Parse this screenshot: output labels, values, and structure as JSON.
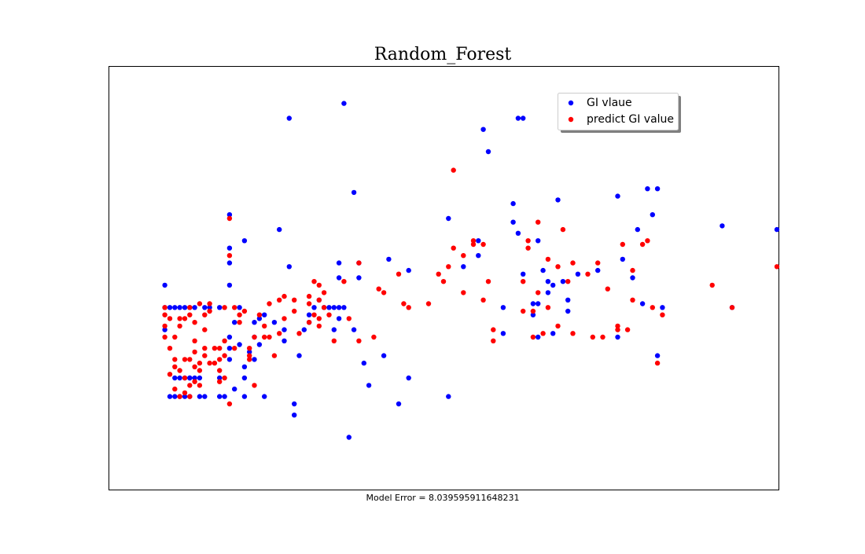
{
  "chart_data": {
    "type": "scatter",
    "title": "Random_Forest",
    "xlabel": "Model Error = 8.039595911648231",
    "ylabel": "",
    "grid": false,
    "legend_position": "upper right",
    "xlim": [
      0,
      122
    ],
    "ylim": [
      0,
      104
    ],
    "series": [
      {
        "name": "GI vlaue",
        "color": "#0000ff",
        "points": [
          [
            5,
            50
          ],
          [
            5,
            44
          ],
          [
            5,
            38
          ],
          [
            6,
            44
          ],
          [
            7,
            44
          ],
          [
            8,
            44
          ],
          [
            9,
            44
          ],
          [
            10,
            44
          ],
          [
            11,
            44
          ],
          [
            10,
            25
          ],
          [
            10,
            20
          ],
          [
            9,
            20
          ],
          [
            8,
            20
          ],
          [
            6,
            20
          ],
          [
            7,
            20
          ],
          [
            7,
            25
          ],
          [
            8,
            25
          ],
          [
            9,
            25
          ],
          [
            10,
            25
          ],
          [
            11,
            25
          ],
          [
            12,
            25
          ],
          [
            12,
            20
          ],
          [
            13,
            20
          ],
          [
            13,
            44
          ],
          [
            14,
            44
          ],
          [
            16,
            44
          ],
          [
            16,
            25
          ],
          [
            16,
            20
          ],
          [
            17,
            20
          ],
          [
            18,
            50
          ],
          [
            18,
            56
          ],
          [
            18,
            69
          ],
          [
            18,
            60
          ],
          [
            18,
            33
          ],
          [
            18,
            30
          ],
          [
            18,
            36
          ],
          [
            19,
            22
          ],
          [
            19,
            40
          ],
          [
            20,
            44
          ],
          [
            20,
            34
          ],
          [
            21,
            20
          ],
          [
            21,
            62
          ],
          [
            21,
            28
          ],
          [
            21,
            25
          ],
          [
            23,
            40
          ],
          [
            23,
            30
          ],
          [
            22,
            32
          ],
          [
            23,
            36
          ],
          [
            24,
            34
          ],
          [
            25,
            20
          ],
          [
            24,
            41
          ],
          [
            25,
            42
          ],
          [
            27,
            40
          ],
          [
            28,
            65
          ],
          [
            29,
            38
          ],
          [
            29,
            35
          ],
          [
            30,
            55
          ],
          [
            31,
            15
          ],
          [
            31,
            18
          ],
          [
            32,
            31
          ],
          [
            33,
            38
          ],
          [
            34,
            40
          ],
          [
            34,
            42
          ],
          [
            35,
            44
          ],
          [
            36,
            46
          ],
          [
            37,
            44
          ],
          [
            38,
            44
          ],
          [
            39,
            44
          ],
          [
            39,
            38
          ],
          [
            40,
            41
          ],
          [
            40,
            44
          ],
          [
            40,
            52
          ],
          [
            40,
            56
          ],
          [
            30,
            95
          ],
          [
            41,
            99
          ],
          [
            41,
            44
          ],
          [
            42,
            9
          ],
          [
            43,
            75
          ],
          [
            43,
            38
          ],
          [
            44,
            52
          ],
          [
            44,
            56
          ],
          [
            45,
            29
          ],
          [
            46,
            23
          ],
          [
            49,
            31
          ],
          [
            50,
            57
          ],
          [
            52,
            18
          ],
          [
            54,
            54
          ],
          [
            54,
            25
          ],
          [
            62,
            68
          ],
          [
            62,
            20
          ],
          [
            65,
            55
          ],
          [
            68,
            58
          ],
          [
            68,
            62
          ],
          [
            69,
            92
          ],
          [
            70,
            86
          ],
          [
            73,
            44
          ],
          [
            73,
            37
          ],
          [
            75,
            72
          ],
          [
            75,
            67
          ],
          [
            76,
            95
          ],
          [
            77,
            95
          ],
          [
            76,
            64
          ],
          [
            77,
            53
          ],
          [
            79,
            45
          ],
          [
            79,
            42
          ],
          [
            80,
            62
          ],
          [
            80,
            45
          ],
          [
            80,
            36
          ],
          [
            81,
            54
          ],
          [
            82,
            51
          ],
          [
            82,
            48
          ],
          [
            83,
            50
          ],
          [
            83,
            37
          ],
          [
            84,
            73
          ],
          [
            85,
            51
          ],
          [
            86,
            46
          ],
          [
            86,
            43
          ],
          [
            88,
            53
          ],
          [
            92,
            54
          ],
          [
            96,
            74
          ],
          [
            96,
            36
          ],
          [
            97,
            57
          ],
          [
            99,
            52
          ],
          [
            100,
            65
          ],
          [
            101,
            45
          ],
          [
            102,
            76
          ],
          [
            103,
            69
          ],
          [
            104,
            76
          ],
          [
            104,
            31
          ],
          [
            105,
            44
          ],
          [
            117,
            66
          ],
          [
            119,
            44
          ],
          [
            128,
            65
          ]
        ]
      },
      {
        "name": "predict GI value",
        "color": "#ff0000",
        "points": [
          [
            5,
            44
          ],
          [
            5,
            42
          ],
          [
            5,
            39
          ],
          [
            5,
            36
          ],
          [
            6,
            41
          ],
          [
            6,
            26
          ],
          [
            6,
            33
          ],
          [
            7,
            36
          ],
          [
            7,
            30
          ],
          [
            7,
            28
          ],
          [
            7,
            22
          ],
          [
            8,
            39
          ],
          [
            8,
            41
          ],
          [
            8,
            27
          ],
          [
            8,
            20
          ],
          [
            9,
            41
          ],
          [
            9,
            30
          ],
          [
            9,
            25
          ],
          [
            9,
            21
          ],
          [
            10,
            44
          ],
          [
            10,
            42
          ],
          [
            10,
            30
          ],
          [
            10,
            23
          ],
          [
            10,
            20
          ],
          [
            11,
            40
          ],
          [
            11,
            35
          ],
          [
            11,
            32
          ],
          [
            11,
            28
          ],
          [
            11,
            24
          ],
          [
            12,
            45
          ],
          [
            12,
            29
          ],
          [
            12,
            27
          ],
          [
            12,
            23
          ],
          [
            13,
            42
          ],
          [
            13,
            38
          ],
          [
            13,
            33
          ],
          [
            13,
            31
          ],
          [
            14,
            45
          ],
          [
            14,
            43
          ],
          [
            14,
            29
          ],
          [
            15,
            33
          ],
          [
            15,
            29
          ],
          [
            16,
            33
          ],
          [
            16,
            30
          ],
          [
            16,
            27
          ],
          [
            16,
            24
          ],
          [
            17,
            44
          ],
          [
            17,
            35
          ],
          [
            17,
            31
          ],
          [
            17,
            25
          ],
          [
            18,
            18
          ],
          [
            18,
            58
          ],
          [
            18,
            68
          ],
          [
            19,
            33
          ],
          [
            19,
            44
          ],
          [
            20,
            42
          ],
          [
            20,
            40
          ],
          [
            21,
            43
          ],
          [
            22,
            31
          ],
          [
            22,
            30
          ],
          [
            22,
            33
          ],
          [
            23,
            23
          ],
          [
            23,
            36
          ],
          [
            24,
            42
          ],
          [
            25,
            39
          ],
          [
            25,
            36
          ],
          [
            26,
            45
          ],
          [
            26,
            36
          ],
          [
            27,
            31
          ],
          [
            28,
            46
          ],
          [
            28,
            37
          ],
          [
            29,
            47
          ],
          [
            29,
            41
          ],
          [
            31,
            46
          ],
          [
            31,
            43
          ],
          [
            32,
            37
          ],
          [
            34,
            40
          ],
          [
            34,
            45
          ],
          [
            34,
            47
          ],
          [
            35,
            42
          ],
          [
            35,
            51
          ],
          [
            36,
            50
          ],
          [
            36,
            46
          ],
          [
            36,
            41
          ],
          [
            36,
            39
          ],
          [
            37,
            48
          ],
          [
            37,
            44
          ],
          [
            38,
            42
          ],
          [
            39,
            35
          ],
          [
            41,
            51
          ],
          [
            42,
            41
          ],
          [
            44,
            35
          ],
          [
            44,
            56
          ],
          [
            47,
            36
          ],
          [
            48,
            49
          ],
          [
            49,
            48
          ],
          [
            52,
            53
          ],
          [
            53,
            45
          ],
          [
            54,
            44
          ],
          [
            58,
            45
          ],
          [
            60,
            53
          ],
          [
            61,
            51
          ],
          [
            62,
            55
          ],
          [
            63,
            60
          ],
          [
            63,
            81
          ],
          [
            65,
            58
          ],
          [
            65,
            48
          ],
          [
            67,
            61
          ],
          [
            67,
            62
          ],
          [
            69,
            61
          ],
          [
            69,
            46
          ],
          [
            70,
            51
          ],
          [
            71,
            38
          ],
          [
            71,
            35
          ],
          [
            77,
            43
          ],
          [
            77,
            51
          ],
          [
            78,
            60
          ],
          [
            78,
            62
          ],
          [
            79,
            43
          ],
          [
            79,
            36
          ],
          [
            80,
            48
          ],
          [
            80,
            67
          ],
          [
            81,
            37
          ],
          [
            82,
            44
          ],
          [
            82,
            57
          ],
          [
            84,
            55
          ],
          [
            84,
            39
          ],
          [
            85,
            65
          ],
          [
            86,
            51
          ],
          [
            87,
            56
          ],
          [
            87,
            37
          ],
          [
            90,
            53
          ],
          [
            91,
            36
          ],
          [
            92,
            56
          ],
          [
            93,
            36
          ],
          [
            94,
            49
          ],
          [
            96,
            38
          ],
          [
            96,
            39
          ],
          [
            97,
            61
          ],
          [
            98,
            38
          ],
          [
            99,
            46
          ],
          [
            99,
            54
          ],
          [
            101,
            61
          ],
          [
            102,
            62
          ],
          [
            103,
            44
          ],
          [
            104,
            29
          ],
          [
            105,
            42
          ],
          [
            115,
            50
          ],
          [
            119,
            44
          ],
          [
            128,
            55
          ]
        ]
      }
    ]
  }
}
